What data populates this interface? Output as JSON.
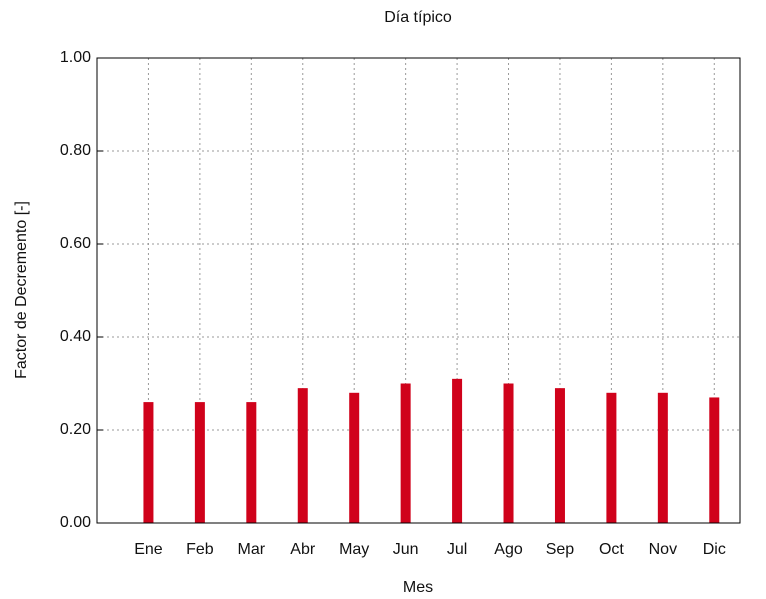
{
  "chart_data": {
    "type": "bar",
    "title": "Día típico",
    "xlabel": "Mes",
    "ylabel": "Factor de Decremento [-]",
    "categories": [
      "Ene",
      "Feb",
      "Mar",
      "Abr",
      "May",
      "Jun",
      "Jul",
      "Ago",
      "Sep",
      "Oct",
      "Nov",
      "Dic"
    ],
    "values": [
      0.26,
      0.26,
      0.26,
      0.29,
      0.28,
      0.3,
      0.31,
      0.3,
      0.29,
      0.28,
      0.28,
      0.27
    ],
    "color": "#d0021b",
    "ylim": [
      0,
      1
    ],
    "yticks": [
      {
        "value": 0,
        "label": "0.00"
      },
      {
        "value": 0.2,
        "label": "0.20"
      },
      {
        "value": 0.4,
        "label": "0.40"
      },
      {
        "value": 0.6,
        "label": "0.60"
      },
      {
        "value": 0.8,
        "label": "0.80"
      },
      {
        "value": 1,
        "label": "1.00"
      }
    ],
    "grid": true
  }
}
